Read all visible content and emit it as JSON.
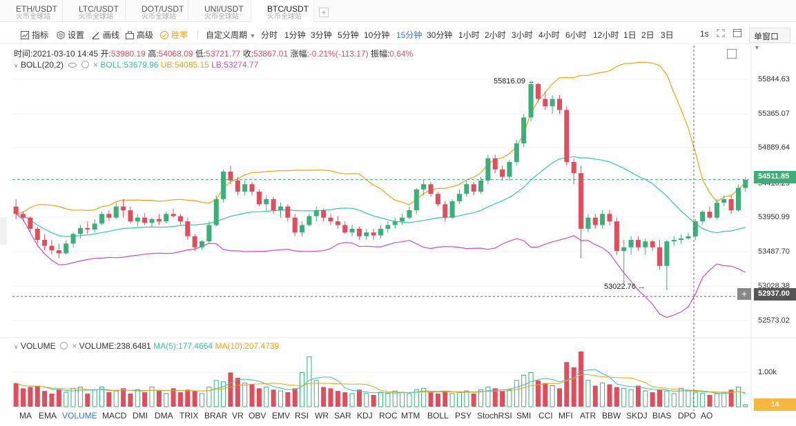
{
  "tabs": [
    {
      "symbol": "ETH/USDT",
      "sub": "火币全球站"
    },
    {
      "symbol": "LTC/USDT",
      "sub": "火币全球站"
    },
    {
      "symbol": "DOT/USDT",
      "sub": "火币全球站"
    },
    {
      "symbol": "UNI/USDT",
      "sub": "火币全球站"
    },
    {
      "symbol": "BTC/USDT",
      "sub": "火币全球站"
    }
  ],
  "toolbar": {
    "indicators": "指标",
    "settings": "设置",
    "draw": "画线",
    "advanced": "高级",
    "winrate": "胜率",
    "custom_period": "自定义周期",
    "periods": [
      "分时",
      "1分钟",
      "3分钟",
      "5分钟",
      "10分钟",
      "15分钟",
      "30分钟",
      "1小时",
      "2小时",
      "3小时",
      "4小时",
      "6小时",
      "12小时",
      "1日",
      "2日",
      "3日"
    ],
    "active_period": "15分钟",
    "interval_1s": "1s",
    "window_mode": "单窗口"
  },
  "ohlc": {
    "time_label": "时间:",
    "time": "2021-03-10 14:45",
    "open_label": "开:",
    "open": "53980.19",
    "high_label": "高:",
    "high": "54068.09",
    "low_label": "低:",
    "low": "53721.77",
    "close_label": "收:",
    "close": "53867.01",
    "change_label": "涨幅:",
    "change": "-0.21%(-113.17)",
    "amp_label": "振幅:",
    "amp": "0.64%"
  },
  "boll": {
    "name": "BOLL(20,2)",
    "boll": "BOLL:53679.96",
    "ub": "UB:54085.15",
    "lb": "LB:53274.77"
  },
  "volume_info": {
    "name": "VOLUME",
    "volume": "VOLUME:238.6481",
    "ma5": "MA(5):177.4664",
    "ma10": "MA(10):207.4739"
  },
  "price_axis": [
    "55844.63",
    "55365.07",
    "54889.64",
    "54416.29",
    "53950.99",
    "53487.70",
    "53028.38",
    "52573.02"
  ],
  "volume_axis": [
    "1.00k"
  ],
  "current_price": "54511.85",
  "crosshair_price": "52937.00",
  "crosshair_plus": "+",
  "volume_current": "14",
  "annotations": {
    "high": "55816.09 →",
    "low": "53022.76 →"
  },
  "indicators": [
    "MA",
    "EMA",
    "VOLUME",
    "MACD",
    "DMI",
    "DMA",
    "TRIX",
    "BRAR",
    "VR",
    "OBV",
    "EMV",
    "RSI",
    "WR",
    "SAR",
    "KDJ",
    "ROC",
    "MTM",
    "BOLL",
    "PSY",
    "StochRSI",
    "SMI",
    "CCI",
    "MFI",
    "ATR",
    "BBW",
    "SKDJ",
    "BIAS",
    "DPO",
    "AO"
  ],
  "active_indicator": "VOLUME",
  "colors": {
    "up": "#3aaf7a",
    "down": "#e04e5e",
    "boll": "#2ec7b3",
    "ub": "#f0a30a",
    "lb": "#d14ac8",
    "accent": "#2e7bd6"
  },
  "chart_data": {
    "type": "candlestick",
    "price_range": [
      52400,
      56050
    ],
    "candles": [
      [
        54150,
        54250,
        53980,
        54050
      ],
      [
        54050,
        54080,
        53950,
        54000
      ],
      [
        54000,
        54020,
        53800,
        53850
      ],
      [
        53850,
        53880,
        53650,
        53700
      ],
      [
        53700,
        53780,
        53560,
        53620
      ],
      [
        53620,
        53700,
        53500,
        53560
      ],
      [
        53560,
        53650,
        53450,
        53520
      ],
      [
        53520,
        53700,
        53500,
        53650
      ],
      [
        53650,
        53800,
        53600,
        53780
      ],
      [
        53780,
        53900,
        53720,
        53860
      ],
      [
        53860,
        53950,
        53780,
        53840
      ],
      [
        53840,
        53980,
        53800,
        53920
      ],
      [
        53920,
        54080,
        53900,
        54050
      ],
      [
        54050,
        54100,
        53950,
        54000
      ],
      [
        54000,
        54200,
        53980,
        54150
      ],
      [
        54150,
        54250,
        54000,
        54100
      ],
      [
        54100,
        54150,
        53920,
        53950
      ],
      [
        53950,
        54050,
        53880,
        54000
      ],
      [
        54000,
        54060,
        53900,
        53930
      ],
      [
        53930,
        54000,
        53880,
        53980
      ],
      [
        53980,
        54050,
        53900,
        53950
      ],
      [
        53950,
        54080,
        53920,
        54050
      ],
      [
        54050,
        54120,
        54000,
        54020
      ],
      [
        54020,
        54050,
        53900,
        53950
      ],
      [
        53950,
        54000,
        53700,
        53750
      ],
      [
        53750,
        53780,
        53550,
        53600
      ],
      [
        53600,
        53700,
        53560,
        53680
      ],
      [
        53680,
        53950,
        53650,
        53900
      ],
      [
        53900,
        54300,
        53880,
        54250
      ],
      [
        54250,
        54650,
        54200,
        54620
      ],
      [
        54620,
        54700,
        54450,
        54500
      ],
      [
        54500,
        54550,
        54300,
        54350
      ],
      [
        54350,
        54500,
        54300,
        54450
      ],
      [
        54450,
        54480,
        54300,
        54350
      ],
      [
        54350,
        54380,
        54150,
        54180
      ],
      [
        54180,
        54300,
        54100,
        54250
      ],
      [
        54250,
        54280,
        54050,
        54100
      ],
      [
        54100,
        54200,
        54000,
        54150
      ],
      [
        54150,
        54180,
        53950,
        54000
      ],
      [
        54000,
        54050,
        53750,
        53800
      ],
      [
        53800,
        53950,
        53750,
        53900
      ],
      [
        53900,
        54050,
        53880,
        54020
      ],
      [
        54020,
        54150,
        53950,
        54100
      ],
      [
        54100,
        54120,
        53950,
        54000
      ],
      [
        54000,
        54050,
        53900,
        53950
      ],
      [
        53950,
        54020,
        53850,
        53900
      ],
      [
        53900,
        53950,
        53780,
        53800
      ],
      [
        53800,
        53900,
        53750,
        53850
      ],
      [
        53850,
        53880,
        53700,
        53750
      ],
      [
        53750,
        53850,
        53700,
        53800
      ],
      [
        53800,
        53850,
        53700,
        53760
      ],
      [
        53760,
        53900,
        53720,
        53850
      ],
      [
        53850,
        53950,
        53800,
        53900
      ],
      [
        53900,
        54000,
        53850,
        53950
      ],
      [
        53950,
        54050,
        53900,
        54000
      ],
      [
        54000,
        54150,
        53980,
        54100
      ],
      [
        54100,
        54400,
        54050,
        54380
      ],
      [
        54380,
        54520,
        54300,
        54450
      ],
      [
        54450,
        54480,
        54280,
        54320
      ],
      [
        54320,
        54350,
        54150,
        54180
      ],
      [
        54180,
        54220,
        53950,
        54000
      ],
      [
        54000,
        54250,
        53980,
        54220
      ],
      [
        54220,
        54380,
        54180,
        54320
      ],
      [
        54320,
        54500,
        54280,
        54450
      ],
      [
        54450,
        54480,
        54300,
        54350
      ],
      [
        54350,
        54550,
        54320,
        54500
      ],
      [
        54500,
        54850,
        54450,
        54800
      ],
      [
        54800,
        54850,
        54600,
        54650
      ],
      [
        54650,
        54700,
        54500,
        54550
      ],
      [
        54550,
        54780,
        54500,
        54750
      ],
      [
        54750,
        55050,
        54700,
        55000
      ],
      [
        55000,
        55400,
        54950,
        55350
      ],
      [
        55350,
        55850,
        55300,
        55800
      ],
      [
        55800,
        55816,
        55550,
        55600
      ],
      [
        55600,
        55700,
        55450,
        55500
      ],
      [
        55500,
        55650,
        55400,
        55600
      ],
      [
        55600,
        55650,
        55400,
        55450
      ],
      [
        55450,
        55500,
        54700,
        54750
      ],
      [
        54750,
        54800,
        54450,
        54600
      ],
      [
        54600,
        54700,
        53450,
        53850
      ],
      [
        53850,
        54050,
        53800,
        54000
      ],
      [
        54000,
        54050,
        53850,
        53900
      ],
      [
        53900,
        54100,
        53850,
        54050
      ],
      [
        54050,
        54100,
        53900,
        53950
      ],
      [
        53950,
        54000,
        53500,
        53550
      ],
      [
        53550,
        53700,
        53100,
        53600
      ],
      [
        53600,
        53750,
        53500,
        53700
      ],
      [
        53700,
        53750,
        53550,
        53600
      ],
      [
        53600,
        53720,
        53500,
        53680
      ],
      [
        53680,
        53700,
        53550,
        53600
      ],
      [
        53600,
        53700,
        53300,
        53350
      ],
      [
        53350,
        53700,
        53023,
        53680
      ],
      [
        53680,
        53750,
        53620,
        53700
      ],
      [
        53700,
        53780,
        53650,
        53720
      ],
      [
        53720,
        53800,
        53700,
        53750
      ],
      [
        53750,
        53980,
        53700,
        53950
      ],
      [
        53950,
        54100,
        53900,
        54080
      ],
      [
        54080,
        54150,
        53980,
        54000
      ],
      [
        54000,
        54250,
        53980,
        54200
      ],
      [
        54200,
        54300,
        54150,
        54250
      ],
      [
        54250,
        54300,
        54050,
        54100
      ],
      [
        54100,
        54450,
        54080,
        54400
      ],
      [
        54400,
        54550,
        54350,
        54510
      ]
    ],
    "volumes": [
      180,
      140,
      150,
      160,
      120,
      100,
      130,
      110,
      140,
      150,
      100,
      130,
      150,
      110,
      120,
      140,
      100,
      130,
      110,
      150,
      120,
      100,
      140,
      110,
      130,
      120,
      100,
      150,
      200,
      190,
      260,
      220,
      180,
      170,
      140,
      150,
      130,
      120,
      110,
      140,
      260,
      380,
      200,
      150,
      140,
      120,
      110,
      100,
      130,
      100,
      90,
      110,
      100,
      120,
      110,
      100,
      130,
      140,
      110,
      100,
      120,
      100,
      110,
      120,
      100,
      130,
      150,
      140,
      120,
      130,
      200,
      240,
      260,
      200,
      180,
      160,
      140,
      340,
      300,
      420,
      200,
      160,
      180,
      170,
      150,
      140,
      130,
      160,
      120,
      110,
      130,
      120,
      100,
      140,
      120,
      110,
      100,
      90,
      100,
      110,
      130,
      150,
      14
    ],
    "series": [
      {
        "name": "BOLL"
      },
      {
        "name": "UB"
      },
      {
        "name": "LB"
      }
    ]
  }
}
